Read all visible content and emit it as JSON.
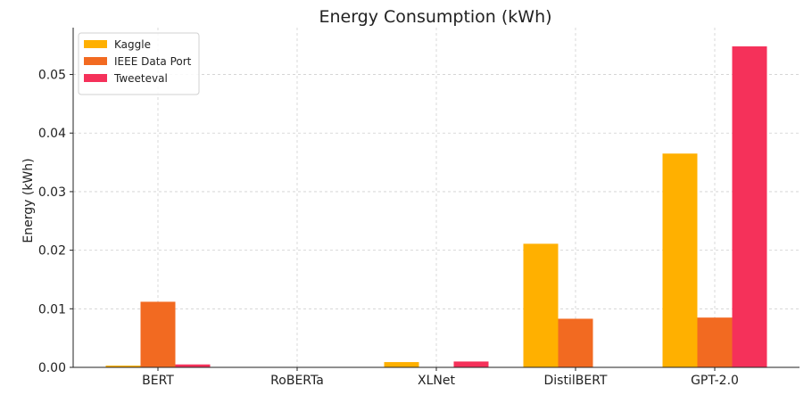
{
  "chart_data": {
    "type": "bar",
    "title": "Energy Consumption (kWh)",
    "xlabel": "",
    "ylabel": "Energy (kWh)",
    "categories": [
      "BERT",
      "RoBERTa",
      "XLNet",
      "DistilBERT",
      "GPT-2.0"
    ],
    "series": [
      {
        "name": "Kaggle",
        "color": "#FFB000",
        "values": [
          0.0003,
          0.0,
          0.0009,
          0.0211,
          0.0365
        ]
      },
      {
        "name": "IEEE Data Port",
        "color": "#F26A21",
        "values": [
          0.0112,
          0.0,
          0.0,
          0.0083,
          0.0085
        ]
      },
      {
        "name": "Tweeteval",
        "color": "#F5315A",
        "values": [
          0.0005,
          0.0,
          0.001,
          0.0,
          0.0548
        ]
      }
    ],
    "ylim": [
      0,
      0.058
    ],
    "yticks": [
      "0.00",
      "0.01",
      "0.02",
      "0.03",
      "0.04",
      "0.05"
    ],
    "grid": true,
    "legend_position": "top-left"
  }
}
